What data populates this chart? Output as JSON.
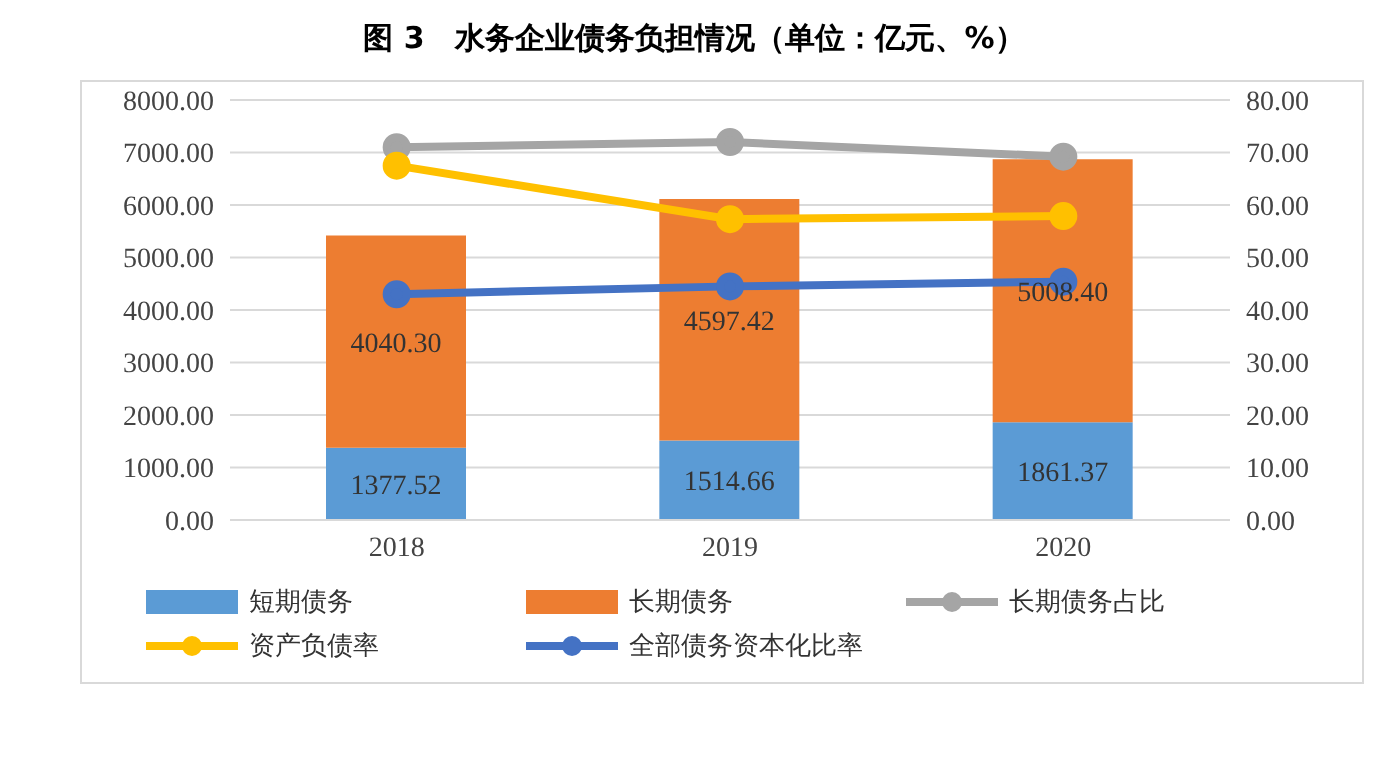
{
  "chart_data": {
    "type": "bar",
    "title": "图 3　水务企业债务负担情况（单位：亿元、%）",
    "categories": [
      "2018",
      "2019",
      "2020"
    ],
    "stacked": true,
    "grid": "y",
    "legend": "bottom",
    "marker": "circle",
    "series": [
      {
        "name": "短期债务",
        "color": "#5b9bd5",
        "values": [
          1377.52,
          1514.66,
          1861.37
        ],
        "value_labels": [
          "1377.52",
          "1514.66",
          "1861.37"
        ]
      },
      {
        "name": "长期债务",
        "color": "#ed7d31",
        "values": [
          4040.3,
          4597.42,
          5008.4
        ],
        "value_labels": [
          "4040.30",
          "4597.42",
          "5008.40"
        ]
      },
      {
        "name": "长期债务占比",
        "type": "line",
        "axis": "y2",
        "color": "#a5a5a5",
        "values": [
          71.0,
          72.0,
          69.2
        ]
      },
      {
        "name": "资产负债率",
        "type": "line",
        "axis": "y2",
        "color": "#ffc000",
        "values": [
          67.5,
          57.3,
          57.9
        ]
      },
      {
        "name": "全部债务资本化比率",
        "type": "line",
        "axis": "y2",
        "color": "#4472c4",
        "values": [
          43.0,
          44.5,
          45.4
        ]
      }
    ],
    "ylim": [
      0,
      8000
    ],
    "yticks": [
      {
        "value": 0,
        "label": "0.00"
      },
      {
        "value": 1000,
        "label": "1000.00"
      },
      {
        "value": 2000,
        "label": "2000.00"
      },
      {
        "value": 3000,
        "label": "3000.00"
      },
      {
        "value": 4000,
        "label": "4000.00"
      },
      {
        "value": 5000,
        "label": "5000.00"
      },
      {
        "value": 6000,
        "label": "6000.00"
      },
      {
        "value": 7000,
        "label": "7000.00"
      },
      {
        "value": 8000,
        "label": "8000.00"
      }
    ],
    "y2lim": [
      0,
      80
    ],
    "y2ticks": [
      {
        "value": 0,
        "label": "0.00"
      },
      {
        "value": 10,
        "label": "10.00"
      },
      {
        "value": 20,
        "label": "20.00"
      },
      {
        "value": 30,
        "label": "30.00"
      },
      {
        "value": 40,
        "label": "40.00"
      },
      {
        "value": 50,
        "label": "50.00"
      },
      {
        "value": 60,
        "label": "60.00"
      },
      {
        "value": 70,
        "label": "70.00"
      },
      {
        "value": 80,
        "label": "80.00"
      }
    ]
  }
}
